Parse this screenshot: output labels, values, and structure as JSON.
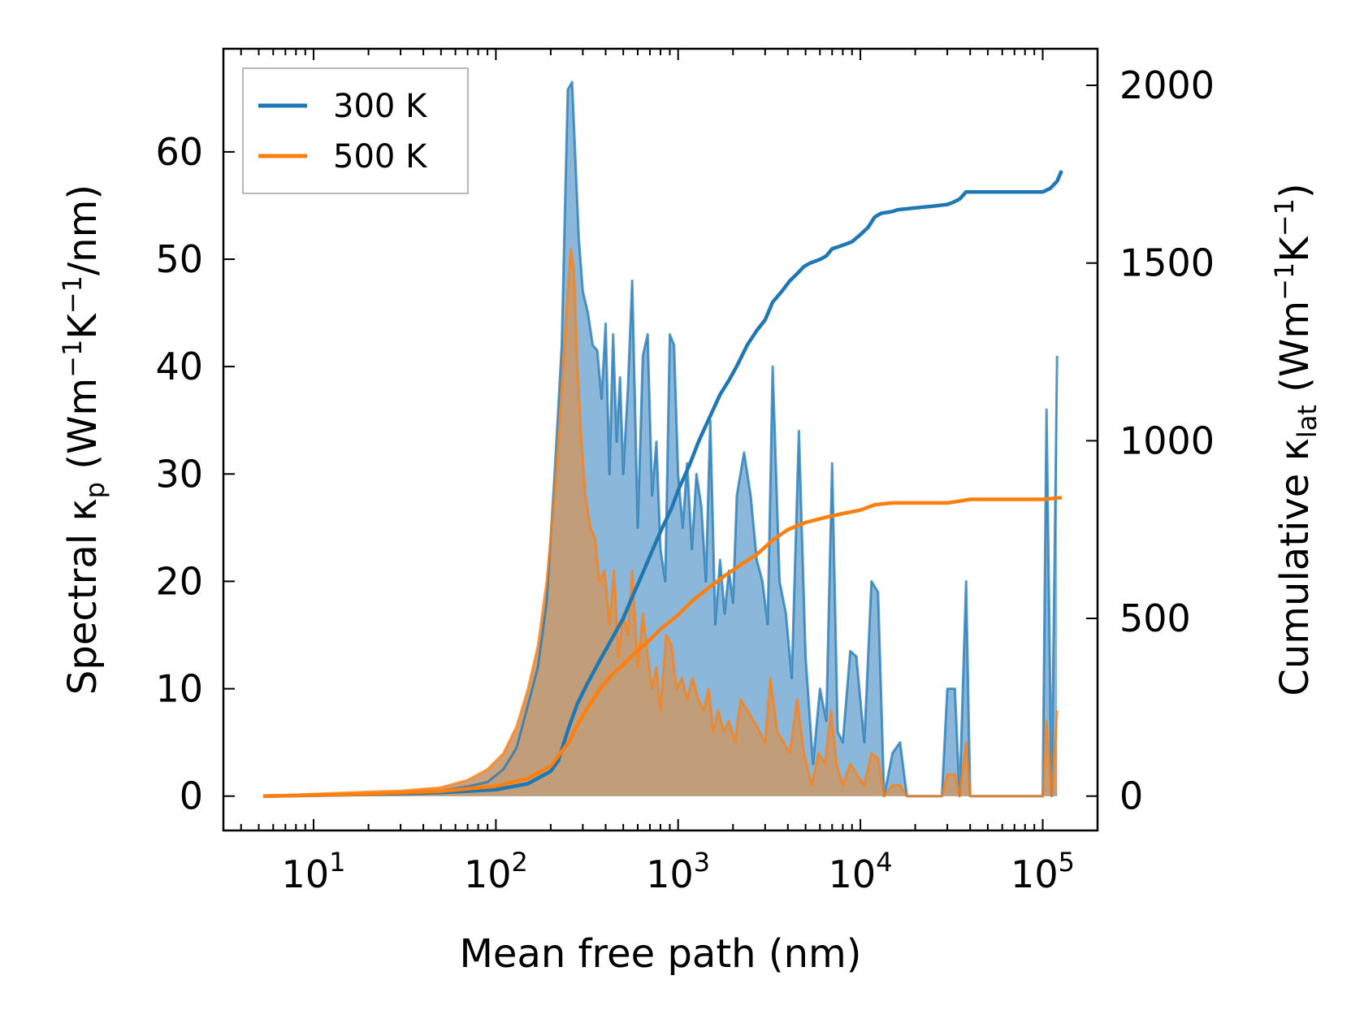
{
  "chart_data": {
    "type": "line",
    "title": "",
    "xlabel": "Mean free path (nm)",
    "ylabel_left": {
      "prefix": "Spectral κ",
      "sub": "p",
      "suffix": " (Wm",
      "sup1": "−1",
      "mid": "K",
      "sup2": "−1",
      "end": "/nm)"
    },
    "ylabel_right": {
      "prefix": "Cumulative κ",
      "sub": "lat",
      "suffix": " (Wm",
      "sup1": "−1",
      "mid": "K",
      "sup2": "−1",
      "end": ")"
    },
    "xscale": "log",
    "xlim": [
      3.2,
      200000
    ],
    "ylim_left": [
      -3.2,
      69.6
    ],
    "ylim_right": [
      -96.7,
      2103
    ],
    "x_ticks": [
      {
        "value": 10,
        "base": "10",
        "exp": "1"
      },
      {
        "value": 100,
        "base": "10",
        "exp": "2"
      },
      {
        "value": 1000,
        "base": "10",
        "exp": "3"
      },
      {
        "value": 10000,
        "base": "10",
        "exp": "4"
      },
      {
        "value": 100000,
        "base": "10",
        "exp": "5"
      }
    ],
    "y_ticks_left": [
      0,
      10,
      20,
      30,
      40,
      50,
      60
    ],
    "y_ticks_right": [
      0,
      500,
      1000,
      1500,
      2000
    ],
    "legend": {
      "position": "top-left",
      "entries": [
        {
          "label": "300 K",
          "color": "#1f77b4"
        },
        {
          "label": "500 K",
          "color": "#ff7f0e"
        }
      ]
    },
    "colors": {
      "s300": "#1f77b4",
      "s500": "#ff7f0e",
      "fill300": "#8bb8da",
      "fill500": "#c79a72"
    },
    "spectral_series": [
      {
        "name": "300 K",
        "axis": "left",
        "points": [
          [
            5.3,
            0
          ],
          [
            10,
            0.1
          ],
          [
            20,
            0.2
          ],
          [
            30,
            0.3
          ],
          [
            50,
            0.5
          ],
          [
            70,
            0.9
          ],
          [
            90,
            1.3
          ],
          [
            110,
            2.5
          ],
          [
            130,
            4.5
          ],
          [
            150,
            8.5
          ],
          [
            170,
            12
          ],
          [
            190,
            18
          ],
          [
            210,
            30
          ],
          [
            230,
            42
          ],
          [
            248,
            65.8
          ],
          [
            262,
            66.5
          ],
          [
            272,
            60
          ],
          [
            285,
            52
          ],
          [
            300,
            47
          ],
          [
            320,
            45
          ],
          [
            340,
            42
          ],
          [
            360,
            41.5
          ],
          [
            380,
            37
          ],
          [
            400,
            44
          ],
          [
            420,
            30
          ],
          [
            440,
            43
          ],
          [
            460,
            33
          ],
          [
            480,
            39
          ],
          [
            500,
            30
          ],
          [
            530,
            38
          ],
          [
            560,
            48
          ],
          [
            600,
            25
          ],
          [
            640,
            41
          ],
          [
            680,
            43
          ],
          [
            720,
            28
          ],
          [
            760,
            33
          ],
          [
            800,
            23
          ],
          [
            850,
            20
          ],
          [
            900,
            43
          ],
          [
            950,
            42
          ],
          [
            1000,
            30
          ],
          [
            1060,
            25
          ],
          [
            1120,
            31
          ],
          [
            1190,
            23
          ],
          [
            1260,
            30
          ],
          [
            1340,
            27
          ],
          [
            1420,
            20
          ],
          [
            1500,
            35
          ],
          [
            1600,
            16
          ],
          [
            1700,
            22
          ],
          [
            1800,
            17
          ],
          [
            1900,
            21
          ],
          [
            2000,
            18
          ],
          [
            2100,
            28
          ],
          [
            2300,
            32
          ],
          [
            2500,
            28
          ],
          [
            2700,
            22
          ],
          [
            2900,
            20
          ],
          [
            3100,
            16
          ],
          [
            3300,
            40
          ],
          [
            3600,
            20
          ],
          [
            3900,
            17
          ],
          [
            4200,
            11
          ],
          [
            4600,
            34
          ],
          [
            5000,
            13
          ],
          [
            5500,
            3
          ],
          [
            6000,
            10
          ],
          [
            6500,
            7
          ],
          [
            7000,
            31
          ],
          [
            7500,
            6
          ],
          [
            8000,
            5
          ],
          [
            8800,
            13.5
          ],
          [
            9500,
            13
          ],
          [
            10500,
            5
          ],
          [
            11500,
            20
          ],
          [
            12500,
            19
          ],
          [
            13500,
            0
          ],
          [
            15000,
            4
          ],
          [
            16500,
            5
          ],
          [
            18000,
            0
          ],
          [
            28000,
            0
          ],
          [
            30000,
            10
          ],
          [
            33000,
            10
          ],
          [
            35000,
            0
          ],
          [
            38000,
            20
          ],
          [
            40000,
            0
          ],
          [
            100000,
            0
          ],
          [
            105000,
            36
          ],
          [
            112000,
            0
          ],
          [
            120000,
            41
          ]
        ]
      },
      {
        "name": "500 K",
        "axis": "left",
        "points": [
          [
            5.3,
            0
          ],
          [
            10,
            0.2
          ],
          [
            20,
            0.4
          ],
          [
            30,
            0.5
          ],
          [
            50,
            0.8
          ],
          [
            70,
            1.5
          ],
          [
            90,
            2.5
          ],
          [
            110,
            4
          ],
          [
            130,
            6.5
          ],
          [
            150,
            10
          ],
          [
            170,
            14
          ],
          [
            190,
            20
          ],
          [
            210,
            28
          ],
          [
            230,
            38
          ],
          [
            248,
            47
          ],
          [
            258,
            51
          ],
          [
            268,
            49
          ],
          [
            280,
            40
          ],
          [
            295,
            33
          ],
          [
            310,
            28
          ],
          [
            330,
            25
          ],
          [
            350,
            24
          ],
          [
            370,
            20
          ],
          [
            395,
            21
          ],
          [
            420,
            16
          ],
          [
            445,
            21
          ],
          [
            470,
            13
          ],
          [
            500,
            17
          ],
          [
            530,
            15
          ],
          [
            560,
            21
          ],
          [
            600,
            12
          ],
          [
            640,
            17
          ],
          [
            680,
            13
          ],
          [
            720,
            10
          ],
          [
            760,
            12
          ],
          [
            800,
            8
          ],
          [
            860,
            15
          ],
          [
            920,
            14
          ],
          [
            980,
            10
          ],
          [
            1050,
            11
          ],
          [
            1120,
            9
          ],
          [
            1200,
            11
          ],
          [
            1290,
            9
          ],
          [
            1380,
            8
          ],
          [
            1470,
            10
          ],
          [
            1560,
            6
          ],
          [
            1660,
            8
          ],
          [
            1780,
            6
          ],
          [
            1900,
            7
          ],
          [
            2050,
            5
          ],
          [
            2200,
            9
          ],
          [
            2400,
            8
          ],
          [
            2600,
            7
          ],
          [
            2800,
            6
          ],
          [
            3000,
            5
          ],
          [
            3200,
            11
          ],
          [
            3500,
            6
          ],
          [
            3800,
            5
          ],
          [
            4100,
            4
          ],
          [
            4500,
            9
          ],
          [
            4900,
            4
          ],
          [
            5400,
            1
          ],
          [
            5900,
            4
          ],
          [
            6400,
            3
          ],
          [
            6900,
            8
          ],
          [
            7400,
            3
          ],
          [
            8000,
            1
          ],
          [
            8800,
            3
          ],
          [
            9600,
            2
          ],
          [
            10500,
            1
          ],
          [
            11500,
            4
          ],
          [
            12500,
            3.5
          ],
          [
            13500,
            0
          ],
          [
            15000,
            1
          ],
          [
            16500,
            1
          ],
          [
            18000,
            0
          ],
          [
            28000,
            0
          ],
          [
            30000,
            2
          ],
          [
            33000,
            2
          ],
          [
            35000,
            0
          ],
          [
            38000,
            5
          ],
          [
            40000,
            0
          ],
          [
            100000,
            0
          ],
          [
            105000,
            7
          ],
          [
            112000,
            0
          ],
          [
            120000,
            8
          ]
        ]
      }
    ],
    "cumulative_series": [
      {
        "name": "300 K",
        "axis": "right",
        "points": [
          [
            5.3,
            0
          ],
          [
            20,
            5
          ],
          [
            50,
            10
          ],
          [
            100,
            18
          ],
          [
            150,
            35
          ],
          [
            200,
            70
          ],
          [
            220,
            100
          ],
          [
            250,
            190
          ],
          [
            280,
            260
          ],
          [
            320,
            320
          ],
          [
            370,
            380
          ],
          [
            430,
            440
          ],
          [
            500,
            500
          ],
          [
            560,
            560
          ],
          [
            630,
            620
          ],
          [
            720,
            690
          ],
          [
            810,
            750
          ],
          [
            920,
            810
          ],
          [
            1000,
            860
          ],
          [
            1150,
            930
          ],
          [
            1300,
            1000
          ],
          [
            1500,
            1070
          ],
          [
            1700,
            1130
          ],
          [
            1900,
            1170
          ],
          [
            2100,
            1210
          ],
          [
            2400,
            1270
          ],
          [
            2700,
            1310
          ],
          [
            3000,
            1340
          ],
          [
            3300,
            1390
          ],
          [
            3700,
            1420
          ],
          [
            4100,
            1450
          ],
          [
            4500,
            1470
          ],
          [
            4900,
            1490
          ],
          [
            5300,
            1500
          ],
          [
            6000,
            1510
          ],
          [
            6500,
            1520
          ],
          [
            7000,
            1540
          ],
          [
            7500,
            1545
          ],
          [
            8000,
            1550
          ],
          [
            9000,
            1560
          ],
          [
            10000,
            1580
          ],
          [
            11000,
            1600
          ],
          [
            12000,
            1630
          ],
          [
            13000,
            1640
          ],
          [
            15000,
            1645
          ],
          [
            16000,
            1650
          ],
          [
            20000,
            1655
          ],
          [
            25000,
            1660
          ],
          [
            30000,
            1665
          ],
          [
            32000,
            1670
          ],
          [
            35000,
            1680
          ],
          [
            38000,
            1700
          ],
          [
            40000,
            1700
          ],
          [
            100000,
            1700
          ],
          [
            110000,
            1710
          ],
          [
            120000,
            1730
          ],
          [
            127000,
            1760
          ]
        ]
      },
      {
        "name": "500 K",
        "axis": "right",
        "points": [
          [
            5.3,
            0
          ],
          [
            20,
            6
          ],
          [
            50,
            14
          ],
          [
            100,
            28
          ],
          [
            150,
            50
          ],
          [
            200,
            85
          ],
          [
            250,
            150
          ],
          [
            280,
            200
          ],
          [
            320,
            250
          ],
          [
            370,
            300
          ],
          [
            430,
            340
          ],
          [
            500,
            370
          ],
          [
            600,
            410
          ],
          [
            700,
            440
          ],
          [
            800,
            470
          ],
          [
            1000,
            510
          ],
          [
            1200,
            550
          ],
          [
            1500,
            590
          ],
          [
            1800,
            620
          ],
          [
            2200,
            650
          ],
          [
            2700,
            680
          ],
          [
            3300,
            720
          ],
          [
            4000,
            750
          ],
          [
            5000,
            770
          ],
          [
            6500,
            785
          ],
          [
            8000,
            795
          ],
          [
            10000,
            805
          ],
          [
            12000,
            820
          ],
          [
            15000,
            825
          ],
          [
            20000,
            825
          ],
          [
            30000,
            825
          ],
          [
            35000,
            830
          ],
          [
            40000,
            835
          ],
          [
            100000,
            835
          ],
          [
            127000,
            840
          ]
        ]
      }
    ]
  }
}
